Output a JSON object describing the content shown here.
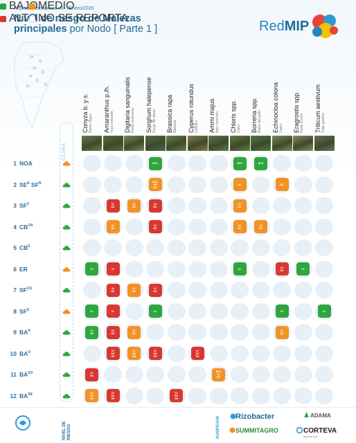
{
  "header": {
    "subtitle": "Reporte monitoreos #6 - /Enero/2026",
    "title_bold_1": "Nivel de riesgo de Malezas",
    "title_bold_2": "principales",
    "title_light_2": "por Nodo [ Parte 1 ]",
    "brand_prefix": "Red",
    "brand_suffix": "MIP"
  },
  "colors": {
    "green": "#2fa63d",
    "red": "#d9372f",
    "orange": "#f29224",
    "accent": "#1f6b95"
  },
  "clima_label": "CLIMA",
  "weeds": [
    {
      "sci": "Conyza b. y s.",
      "com": "Rama negra"
    },
    {
      "sci": "Amaranthus p./h.",
      "com": "Yuyo colorado"
    },
    {
      "sci": "Digitaria sanguinalis",
      "com": "Pasto cuaresma"
    },
    {
      "sci": "Sorghum halepense",
      "com": "Sorgo de alepo"
    },
    {
      "sci": "Brassica rapa",
      "com": "Nabolza"
    },
    {
      "sci": "Cyperus rotundus",
      "com": "Cebollín"
    },
    {
      "sci": "Ammi majus",
      "com": "Apio cimarrón"
    },
    {
      "sci": "Chloris spp.",
      "com": "Cloris"
    },
    {
      "sci": "Borreria spp.",
      "com": "Botón del pollo"
    },
    {
      "sci": "Echinocloa colona",
      "com": "Capín"
    },
    {
      "sci": "Eragrostis spp.",
      "com": "Pasto ilusión"
    },
    {
      "sci": "Triticum aestivum",
      "com": "Trigo guacho"
    }
  ],
  "nodes": [
    {
      "num": "1",
      "name": "NOA",
      "sup": "",
      "name2": "",
      "sup2": "",
      "cloud": "orange"
    },
    {
      "num": "2",
      "name": "SE",
      "sup": "E",
      "name2": " SF",
      "sup2": "N",
      "cloud": "green"
    },
    {
      "num": "3",
      "name": "SF",
      "sup": "C",
      "name2": "",
      "sup2": "",
      "cloud": "green"
    },
    {
      "num": "4",
      "name": "CB",
      "sup": "CN",
      "name2": "",
      "sup2": "",
      "cloud": "green"
    },
    {
      "num": "5",
      "name": "CB",
      "sup": "E",
      "name2": "",
      "sup2": "",
      "cloud": "green"
    },
    {
      "num": "6",
      "name": "ER",
      "sup": "",
      "name2": "",
      "sup2": "",
      "cloud": "orange"
    },
    {
      "num": "7",
      "name": "SF",
      "sup": "CS",
      "name2": "",
      "sup2": "",
      "cloud": "green"
    },
    {
      "num": "8",
      "name": "SF",
      "sup": "S",
      "name2": "",
      "sup2": "",
      "cloud": "orange"
    },
    {
      "num": "9",
      "name": "BA",
      "sup": "N",
      "name2": "",
      "sup2": "",
      "cloud": "green"
    },
    {
      "num": "10",
      "name": "BA",
      "sup": "O",
      "name2": "",
      "sup2": "",
      "cloud": "green"
    },
    {
      "num": "11",
      "name": "BA",
      "sup": "SO",
      "name2": "",
      "sup2": "",
      "cloud": "green"
    },
    {
      "num": "12",
      "name": "BA",
      "sup": "SE",
      "name2": "",
      "sup2": "",
      "cloud": "green"
    }
  ],
  "cells": [
    {
      "row": 0,
      "col": 3,
      "level": "green",
      "lines": [
        "BCH"
      ]
    },
    {
      "row": 0,
      "col": 7,
      "level": "green",
      "lines": [
        "BCH"
      ]
    },
    {
      "row": 0,
      "col": 8,
      "level": "green",
      "lines": [
        "BCH"
      ]
    },
    {
      "row": 1,
      "col": 3,
      "level": "orange",
      "lines": [
        "BCH",
        "GR",
        "MZ"
      ]
    },
    {
      "row": 1,
      "col": 7,
      "level": "orange",
      "lines": [
        "MZ"
      ]
    },
    {
      "row": 1,
      "col": 9,
      "level": "orange",
      "lines": [
        "MZ"
      ]
    },
    {
      "row": 2,
      "col": 1,
      "level": "red",
      "lines": [
        "SJ",
        "MZ"
      ]
    },
    {
      "row": 2,
      "col": 2,
      "level": "orange",
      "lines": [
        "SJ",
        "MZ"
      ]
    },
    {
      "row": 2,
      "col": 3,
      "level": "red",
      "lines": [
        "SJ",
        "MZ"
      ]
    },
    {
      "row": 2,
      "col": 7,
      "level": "orange",
      "lines": [
        "SJ",
        "MZ"
      ]
    },
    {
      "row": 3,
      "col": 1,
      "level": "orange",
      "lines": [
        "SJ",
        "MZ"
      ]
    },
    {
      "row": 3,
      "col": 3,
      "level": "red",
      "lines": [
        "SJ",
        "MZ"
      ]
    },
    {
      "row": 3,
      "col": 7,
      "level": "orange",
      "lines": [
        "SJ",
        "MZ"
      ]
    },
    {
      "row": 3,
      "col": 8,
      "level": "orange",
      "lines": [
        "SJ",
        "MZ"
      ]
    },
    {
      "row": 5,
      "col": 0,
      "level": "green",
      "lines": [
        "SJ"
      ]
    },
    {
      "row": 5,
      "col": 1,
      "level": "red",
      "lines": [
        "SJ"
      ]
    },
    {
      "row": 5,
      "col": 7,
      "level": "green",
      "lines": [
        "SJ"
      ]
    },
    {
      "row": 5,
      "col": 9,
      "level": "red",
      "lines": [
        "SJ",
        "MZ"
      ]
    },
    {
      "row": 5,
      "col": 10,
      "level": "green",
      "lines": [
        "SJ"
      ]
    },
    {
      "row": 6,
      "col": 1,
      "level": "red",
      "lines": [
        "SJ",
        "MZ"
      ]
    },
    {
      "row": 6,
      "col": 2,
      "level": "orange",
      "lines": [
        "SJ",
        "MZ"
      ]
    },
    {
      "row": 6,
      "col": 3,
      "level": "red",
      "lines": [
        "SJ",
        "MZ"
      ]
    },
    {
      "row": 7,
      "col": 0,
      "level": "green",
      "lines": [
        "SJ"
      ]
    },
    {
      "row": 7,
      "col": 1,
      "level": "red",
      "lines": [
        "SJ"
      ]
    },
    {
      "row": 7,
      "col": 3,
      "level": "green",
      "lines": [
        "SJ"
      ]
    },
    {
      "row": 7,
      "col": 9,
      "level": "green",
      "lines": [
        "SJ"
      ]
    },
    {
      "row": 7,
      "col": 11,
      "level": "green",
      "lines": [
        "SJ"
      ]
    },
    {
      "row": 8,
      "col": 0,
      "level": "green",
      "lines": [
        "SJ",
        "MZ"
      ]
    },
    {
      "row": 8,
      "col": 1,
      "level": "red",
      "lines": [
        "SJ",
        "MZ"
      ]
    },
    {
      "row": 8,
      "col": 2,
      "level": "orange",
      "lines": [
        "SJ",
        "MZ"
      ]
    },
    {
      "row": 8,
      "col": 9,
      "level": "orange",
      "lines": [
        "SJ",
        "MZ"
      ]
    },
    {
      "row": 9,
      "col": 1,
      "level": "red",
      "lines": [
        "SJ",
        "MZ",
        "GR"
      ]
    },
    {
      "row": 9,
      "col": 2,
      "level": "orange",
      "lines": [
        "SJ",
        "MZ",
        "GR"
      ]
    },
    {
      "row": 9,
      "col": 3,
      "level": "red",
      "lines": [
        "SJ",
        "MZ",
        "GR"
      ]
    },
    {
      "row": 9,
      "col": 5,
      "level": "red",
      "lines": [
        "SJ",
        "MZ",
        "GR"
      ]
    },
    {
      "row": 10,
      "col": 0,
      "level": "red",
      "lines": [
        "SJ",
        "MZ"
      ]
    },
    {
      "row": 10,
      "col": 6,
      "level": "orange",
      "lines": [
        "BCH",
        "SJ",
        "MZ"
      ]
    },
    {
      "row": 11,
      "col": 0,
      "level": "orange",
      "lines": [
        "SJ",
        "MZ",
        "GR"
      ]
    },
    {
      "row": 11,
      "col": 1,
      "level": "red",
      "lines": [
        "SJ",
        "MZ",
        "GR"
      ]
    },
    {
      "row": 11,
      "col": 4,
      "level": "red",
      "lines": [
        "SJ",
        "MZ",
        "GR"
      ]
    }
  ],
  "footer": {
    "nivel_label": "NIVEL DE RIESGO",
    "legend": [
      {
        "label": "BAJO",
        "level": "green"
      },
      {
        "label": "MEDIO",
        "level": "orange"
      },
      {
        "label": "ALTO",
        "level": "red"
      },
      {
        "label": "NO SE REPORTA",
        "level": "none"
      }
    ],
    "auspician_label": "AUSPICIAN",
    "sponsors": [
      {
        "name": "Rizobacter",
        "color": "#1f6b95"
      },
      {
        "name": "ADAMA",
        "color": "#555555"
      },
      {
        "name": "SUMMITAGRO",
        "color": "#2c8a3c"
      },
      {
        "name": "CORTEVA",
        "color": "#1a1a1a"
      }
    ],
    "corteva_tagline": "agriscience"
  }
}
